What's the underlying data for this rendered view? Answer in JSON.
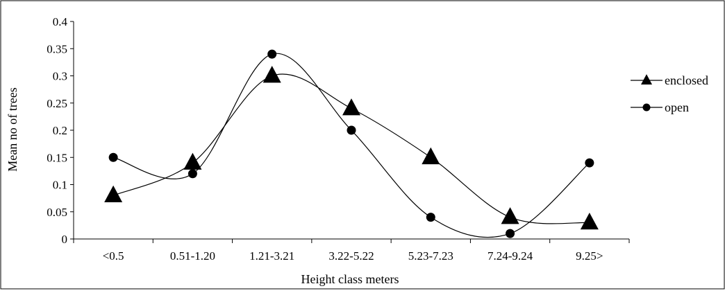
{
  "chart_data": {
    "type": "line",
    "xlabel": "Height class meters",
    "ylabel": "Mean no of  trees",
    "categories": [
      "<0.5",
      "0.51-1.20",
      "1.21-3.21",
      "3.22-5.22",
      "5.23-7.23",
      "7.24-9.24",
      "9.25>"
    ],
    "ylim": [
      0,
      0.4
    ],
    "yticks": [
      0,
      0.05,
      0.1,
      0.15,
      0.2,
      0.25,
      0.3,
      0.35,
      0.4
    ],
    "ytick_labels": [
      "0",
      "0.05",
      "0.1",
      "0.15",
      "0.2",
      "0.25",
      "0.3",
      "0.35",
      "0.4"
    ],
    "grid": false,
    "smooth": true,
    "legend_position": "right",
    "series": [
      {
        "name": "enclosed",
        "marker": "triangle",
        "color": "#000000",
        "values": [
          0.08,
          0.14,
          0.3,
          0.24,
          0.15,
          0.04,
          0.03
        ]
      },
      {
        "name": "open",
        "marker": "circle",
        "color": "#000000",
        "values": [
          0.15,
          0.12,
          0.34,
          0.2,
          0.04,
          0.01,
          0.14
        ]
      }
    ]
  }
}
